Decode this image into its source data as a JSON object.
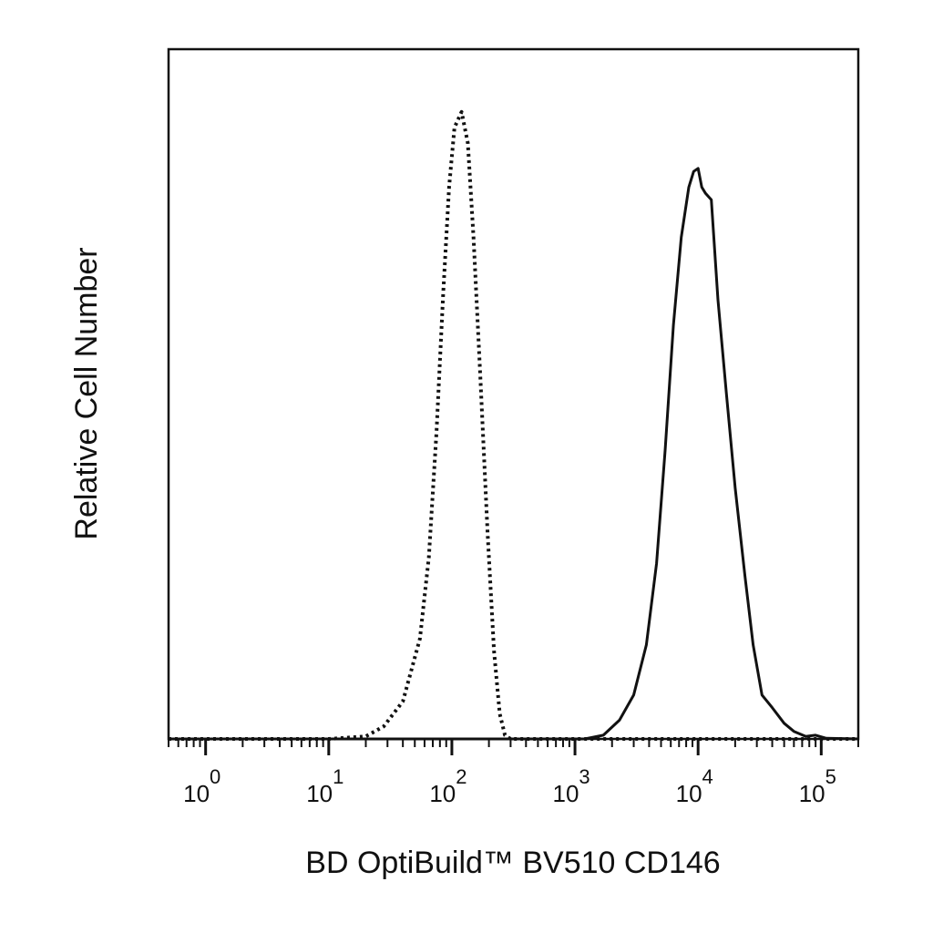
{
  "chart_data": {
    "type": "line",
    "title": "",
    "xlabel": "BD OptiBuild™ BV510 CD146",
    "ylabel": "Relative Cell Number",
    "x_scale": "log",
    "xlim": [
      0.5,
      200000
    ],
    "ylim": [
      0,
      1.1
    ],
    "grid": false,
    "legend": "none",
    "x_ticks": [
      {
        "base": "10",
        "exp": "0",
        "value": 1
      },
      {
        "base": "10",
        "exp": "1",
        "value": 10
      },
      {
        "base": "10",
        "exp": "2",
        "value": 100
      },
      {
        "base": "10",
        "exp": "3",
        "value": 1000
      },
      {
        "base": "10",
        "exp": "4",
        "value": 10000
      },
      {
        "base": "10",
        "exp": "5",
        "value": 100000
      }
    ],
    "series": [
      {
        "style": "dotted",
        "color": "#111111",
        "points": [
          [
            0.5,
            0.0
          ],
          [
            10,
            0.0
          ],
          [
            20,
            0.004
          ],
          [
            28,
            0.02
          ],
          [
            40,
            0.06
          ],
          [
            55,
            0.16
          ],
          [
            65,
            0.29
          ],
          [
            75,
            0.49
          ],
          [
            85,
            0.71
          ],
          [
            95,
            0.88
          ],
          [
            105,
            0.975
          ],
          [
            120,
            1.0
          ],
          [
            135,
            0.95
          ],
          [
            150,
            0.8
          ],
          [
            170,
            0.58
          ],
          [
            195,
            0.33
          ],
          [
            220,
            0.14
          ],
          [
            245,
            0.04
          ],
          [
            270,
            0.006
          ],
          [
            300,
            0.0
          ],
          [
            200000,
            0.0
          ]
        ]
      },
      {
        "style": "solid",
        "color": "#111111",
        "points": [
          [
            0.5,
            0.0
          ],
          [
            1200,
            0.0
          ],
          [
            1700,
            0.006
          ],
          [
            2300,
            0.03
          ],
          [
            3000,
            0.07
          ],
          [
            3800,
            0.15
          ],
          [
            4600,
            0.28
          ],
          [
            5400,
            0.46
          ],
          [
            6300,
            0.66
          ],
          [
            7300,
            0.8
          ],
          [
            8400,
            0.88
          ],
          [
            9200,
            0.905
          ],
          [
            10000,
            0.91
          ],
          [
            10700,
            0.88
          ],
          [
            11500,
            0.87
          ],
          [
            12800,
            0.86
          ],
          [
            14500,
            0.7
          ],
          [
            17000,
            0.55
          ],
          [
            20000,
            0.4
          ],
          [
            24000,
            0.26
          ],
          [
            28000,
            0.15
          ],
          [
            33000,
            0.07
          ],
          [
            40000,
            0.05
          ],
          [
            50000,
            0.025
          ],
          [
            60000,
            0.012
          ],
          [
            75000,
            0.004
          ],
          [
            90000,
            0.006
          ],
          [
            110000,
            0.001
          ],
          [
            200000,
            0.0
          ]
        ]
      }
    ]
  }
}
